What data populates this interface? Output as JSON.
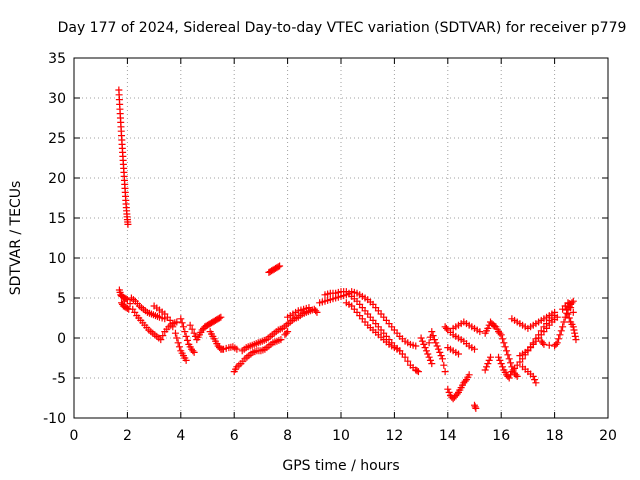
{
  "chart_data": {
    "type": "scatter",
    "title": "Day 177 of 2024, Sidereal Day-to-day VTEC variation (SDTVAR) for receiver p779",
    "xlabel": "GPS time / hours",
    "ylabel": "SDTVAR / TECUs",
    "xlim": [
      0,
      20
    ],
    "ylim": [
      -10,
      35
    ],
    "xticks": [
      0,
      2,
      4,
      6,
      8,
      10,
      12,
      14,
      16,
      18,
      20
    ],
    "yticks": [
      -10,
      -5,
      0,
      5,
      10,
      15,
      20,
      25,
      30,
      35
    ],
    "grid": true,
    "marker": "plus",
    "color": "#ff0000",
    "series": [
      {
        "name": "tracks",
        "points": [
          [
            1.68,
            31.0
          ],
          [
            1.7,
            29.8
          ],
          [
            1.72,
            28.6
          ],
          [
            1.74,
            27.5
          ],
          [
            1.76,
            26.4
          ],
          [
            1.78,
            25.3
          ],
          [
            1.8,
            24.2
          ],
          [
            1.82,
            23.2
          ],
          [
            1.84,
            22.2
          ],
          [
            1.86,
            21.2
          ],
          [
            1.88,
            20.2
          ],
          [
            1.9,
            19.2
          ],
          [
            1.92,
            18.2
          ],
          [
            1.94,
            17.2
          ],
          [
            1.96,
            16.3
          ],
          [
            1.98,
            15.5
          ],
          [
            2.0,
            14.8
          ],
          [
            2.02,
            14.2
          ],
          [
            1.7,
            6.0
          ],
          [
            1.75,
            5.4
          ],
          [
            1.8,
            5.2
          ],
          [
            1.9,
            5.0
          ],
          [
            2.0,
            4.8
          ],
          [
            1.78,
            4.4
          ],
          [
            1.85,
            4.0
          ],
          [
            1.95,
            3.8
          ],
          [
            2.05,
            3.6
          ],
          [
            2.15,
            5.0
          ],
          [
            2.3,
            4.6
          ],
          [
            2.45,
            4.0
          ],
          [
            2.6,
            3.6
          ],
          [
            2.75,
            3.2
          ],
          [
            2.9,
            3.0
          ],
          [
            3.05,
            2.8
          ],
          [
            3.2,
            2.6
          ],
          [
            3.4,
            2.4
          ],
          [
            2.2,
            3.6
          ],
          [
            2.35,
            2.8
          ],
          [
            2.5,
            2.2
          ],
          [
            2.65,
            1.6
          ],
          [
            2.8,
            1.0
          ],
          [
            2.95,
            0.6
          ],
          [
            3.1,
            0.2
          ],
          [
            3.25,
            -0.2
          ],
          [
            3.4,
            0.8
          ],
          [
            3.55,
            1.4
          ],
          [
            3.7,
            1.8
          ],
          [
            3.85,
            2.0
          ],
          [
            3.0,
            4.0
          ],
          [
            3.2,
            3.5
          ],
          [
            3.4,
            3.0
          ],
          [
            3.6,
            2.2
          ],
          [
            3.8,
            0.6
          ],
          [
            3.9,
            -0.6
          ],
          [
            4.0,
            -1.6
          ],
          [
            4.1,
            -2.2
          ],
          [
            4.2,
            -2.8
          ],
          [
            4.0,
            2.4
          ],
          [
            4.1,
            1.4
          ],
          [
            4.2,
            0.2
          ],
          [
            4.3,
            -0.8
          ],
          [
            4.4,
            -1.4
          ],
          [
            4.5,
            -1.8
          ],
          [
            4.35,
            1.6
          ],
          [
            4.5,
            0.6
          ],
          [
            4.6,
            -0.2
          ],
          [
            4.7,
            0.4
          ],
          [
            4.8,
            1.0
          ],
          [
            4.9,
            1.4
          ],
          [
            5.0,
            1.6
          ],
          [
            5.1,
            1.8
          ],
          [
            5.2,
            2.0
          ],
          [
            5.3,
            2.2
          ],
          [
            5.4,
            2.4
          ],
          [
            5.5,
            2.6
          ],
          [
            5.1,
            0.8
          ],
          [
            5.2,
            0.2
          ],
          [
            5.3,
            -0.4
          ],
          [
            5.4,
            -1.0
          ],
          [
            5.5,
            -1.4
          ],
          [
            5.6,
            -1.4
          ],
          [
            5.8,
            -1.2
          ],
          [
            5.95,
            -1.1
          ],
          [
            6.1,
            -1.4
          ],
          [
            6.0,
            -4.2
          ],
          [
            6.1,
            -3.6
          ],
          [
            6.25,
            -3.2
          ],
          [
            6.4,
            -2.6
          ],
          [
            6.55,
            -2.2
          ],
          [
            6.7,
            -1.8
          ],
          [
            6.85,
            -1.6
          ],
          [
            7.0,
            -1.6
          ],
          [
            7.15,
            -1.4
          ],
          [
            7.3,
            -1.0
          ],
          [
            7.45,
            -0.6
          ],
          [
            7.6,
            -0.4
          ],
          [
            7.75,
            -0.2
          ],
          [
            6.3,
            -1.6
          ],
          [
            6.45,
            -1.2
          ],
          [
            6.6,
            -1.0
          ],
          [
            6.75,
            -0.8
          ],
          [
            6.9,
            -0.6
          ],
          [
            7.05,
            -0.4
          ],
          [
            7.2,
            -0.2
          ],
          [
            7.35,
            0.2
          ],
          [
            7.5,
            0.6
          ],
          [
            7.65,
            1.0
          ],
          [
            7.8,
            1.2
          ],
          [
            7.95,
            1.6
          ],
          [
            8.1,
            2.0
          ],
          [
            8.25,
            2.4
          ],
          [
            8.4,
            2.6
          ],
          [
            8.55,
            3.0
          ],
          [
            8.7,
            3.2
          ],
          [
            8.85,
            3.4
          ],
          [
            9.0,
            3.6
          ],
          [
            9.1,
            3.2
          ],
          [
            8.0,
            2.6
          ],
          [
            8.2,
            3.0
          ],
          [
            8.4,
            3.4
          ],
          [
            8.6,
            3.6
          ],
          [
            8.8,
            3.8
          ],
          [
            7.9,
            0.4
          ],
          [
            8.0,
            0.8
          ],
          [
            7.3,
            8.2
          ],
          [
            7.4,
            8.4
          ],
          [
            7.5,
            8.6
          ],
          [
            7.6,
            8.8
          ],
          [
            7.7,
            9.0
          ],
          [
            9.2,
            4.4
          ],
          [
            9.4,
            4.6
          ],
          [
            9.6,
            4.8
          ],
          [
            9.8,
            5.0
          ],
          [
            10.0,
            5.2
          ],
          [
            10.2,
            5.4
          ],
          [
            10.4,
            5.8
          ],
          [
            10.6,
            5.6
          ],
          [
            10.8,
            5.2
          ],
          [
            11.0,
            4.8
          ],
          [
            11.2,
            4.2
          ],
          [
            11.4,
            3.4
          ],
          [
            11.6,
            2.6
          ],
          [
            11.8,
            1.8
          ],
          [
            12.0,
            1.0
          ],
          [
            12.2,
            0.2
          ],
          [
            12.4,
            -0.4
          ],
          [
            12.6,
            -0.8
          ],
          [
            12.8,
            -1.0
          ],
          [
            9.4,
            5.4
          ],
          [
            9.6,
            5.6
          ],
          [
            9.8,
            5.6
          ],
          [
            10.0,
            5.8
          ],
          [
            10.2,
            5.8
          ],
          [
            10.4,
            5.2
          ],
          [
            10.6,
            4.6
          ],
          [
            10.8,
            3.8
          ],
          [
            11.0,
            3.0
          ],
          [
            11.2,
            2.2
          ],
          [
            11.4,
            1.4
          ],
          [
            11.6,
            0.6
          ],
          [
            11.8,
            -0.2
          ],
          [
            12.0,
            -1.0
          ],
          [
            12.2,
            -1.6
          ],
          [
            12.4,
            -2.4
          ],
          [
            12.6,
            -3.4
          ],
          [
            12.8,
            -4.0
          ],
          [
            12.9,
            -4.2
          ],
          [
            10.2,
            4.4
          ],
          [
            10.4,
            4.0
          ],
          [
            10.6,
            3.2
          ],
          [
            10.8,
            2.4
          ],
          [
            11.0,
            1.6
          ],
          [
            11.2,
            1.0
          ],
          [
            11.4,
            0.4
          ],
          [
            11.6,
            -0.2
          ],
          [
            11.8,
            -0.8
          ],
          [
            12.0,
            -1.2
          ],
          [
            12.2,
            -1.6
          ],
          [
            13.0,
            0.0
          ],
          [
            13.1,
            -0.8
          ],
          [
            13.2,
            -1.6
          ],
          [
            13.3,
            -2.4
          ],
          [
            13.4,
            -3.2
          ],
          [
            13.3,
            -0.6
          ],
          [
            13.4,
            0.8
          ],
          [
            13.5,
            -0.2
          ],
          [
            13.6,
            -1.0
          ],
          [
            13.7,
            -1.8
          ],
          [
            13.8,
            -2.6
          ],
          [
            13.9,
            -4.2
          ],
          [
            14.0,
            -6.4
          ],
          [
            14.1,
            -7.2
          ],
          [
            14.2,
            -7.6
          ],
          [
            14.3,
            -7.2
          ],
          [
            14.4,
            -6.8
          ],
          [
            14.5,
            -6.2
          ],
          [
            14.6,
            -5.6
          ],
          [
            14.7,
            -5.2
          ],
          [
            14.8,
            -4.6
          ],
          [
            13.9,
            1.4
          ],
          [
            14.0,
            1.0
          ],
          [
            14.2,
            0.4
          ],
          [
            14.4,
            0.0
          ],
          [
            14.6,
            -0.4
          ],
          [
            14.8,
            -1.0
          ],
          [
            15.0,
            -1.4
          ],
          [
            14.2,
            1.2
          ],
          [
            14.4,
            1.6
          ],
          [
            14.6,
            2.0
          ],
          [
            14.8,
            1.6
          ],
          [
            15.0,
            1.2
          ],
          [
            15.2,
            0.8
          ],
          [
            14.0,
            -1.2
          ],
          [
            14.2,
            -1.6
          ],
          [
            14.4,
            -2.0
          ],
          [
            15.0,
            -8.4
          ],
          [
            15.05,
            -8.8
          ],
          [
            15.4,
            -4.0
          ],
          [
            15.5,
            -3.2
          ],
          [
            15.6,
            -2.4
          ],
          [
            15.4,
            0.6
          ],
          [
            15.5,
            1.2
          ],
          [
            15.6,
            2.0
          ],
          [
            15.7,
            1.6
          ],
          [
            15.8,
            1.4
          ],
          [
            15.9,
            0.8
          ],
          [
            16.0,
            0.4
          ],
          [
            16.1,
            -0.6
          ],
          [
            16.2,
            -1.6
          ],
          [
            16.3,
            -2.6
          ],
          [
            16.4,
            -3.6
          ],
          [
            16.5,
            -4.4
          ],
          [
            16.6,
            -4.8
          ],
          [
            15.9,
            -2.4
          ],
          [
            16.0,
            -3.2
          ],
          [
            16.1,
            -4.0
          ],
          [
            16.2,
            -4.6
          ],
          [
            16.3,
            -5.0
          ],
          [
            16.4,
            -4.2
          ],
          [
            16.6,
            -3.4
          ],
          [
            16.8,
            -2.6
          ],
          [
            17.0,
            -1.6
          ],
          [
            17.2,
            -0.6
          ],
          [
            17.4,
            0.4
          ],
          [
            17.6,
            1.4
          ],
          [
            17.8,
            2.2
          ],
          [
            18.0,
            2.8
          ],
          [
            16.4,
            2.4
          ],
          [
            16.6,
            2.0
          ],
          [
            16.8,
            1.6
          ],
          [
            17.0,
            1.2
          ],
          [
            17.2,
            1.6
          ],
          [
            17.4,
            2.0
          ],
          [
            17.6,
            2.4
          ],
          [
            17.8,
            2.8
          ],
          [
            18.0,
            3.2
          ],
          [
            16.7,
            -2.2
          ],
          [
            16.9,
            -1.8
          ],
          [
            17.1,
            -1.2
          ],
          [
            17.3,
            -0.4
          ],
          [
            17.5,
            0.4
          ],
          [
            17.7,
            1.2
          ],
          [
            17.9,
            2.0
          ],
          [
            18.1,
            2.6
          ],
          [
            16.8,
            -3.6
          ],
          [
            17.0,
            -4.2
          ],
          [
            17.2,
            -4.8
          ],
          [
            17.3,
            -5.6
          ],
          [
            17.5,
            -0.4
          ],
          [
            17.6,
            -0.8
          ],
          [
            18.0,
            -1.0
          ],
          [
            18.1,
            -0.6
          ],
          [
            18.2,
            0.4
          ],
          [
            18.3,
            1.4
          ],
          [
            18.4,
            2.6
          ],
          [
            18.5,
            3.6
          ],
          [
            18.6,
            4.2
          ],
          [
            18.7,
            4.6
          ],
          [
            18.4,
            4.0
          ],
          [
            18.5,
            3.0
          ],
          [
            18.6,
            2.0
          ],
          [
            18.7,
            1.4
          ],
          [
            18.75,
            0.6
          ],
          [
            18.8,
            -0.2
          ],
          [
            18.3,
            3.6
          ],
          [
            18.5,
            4.4
          ],
          [
            18.7,
            3.2
          ]
        ]
      }
    ]
  }
}
